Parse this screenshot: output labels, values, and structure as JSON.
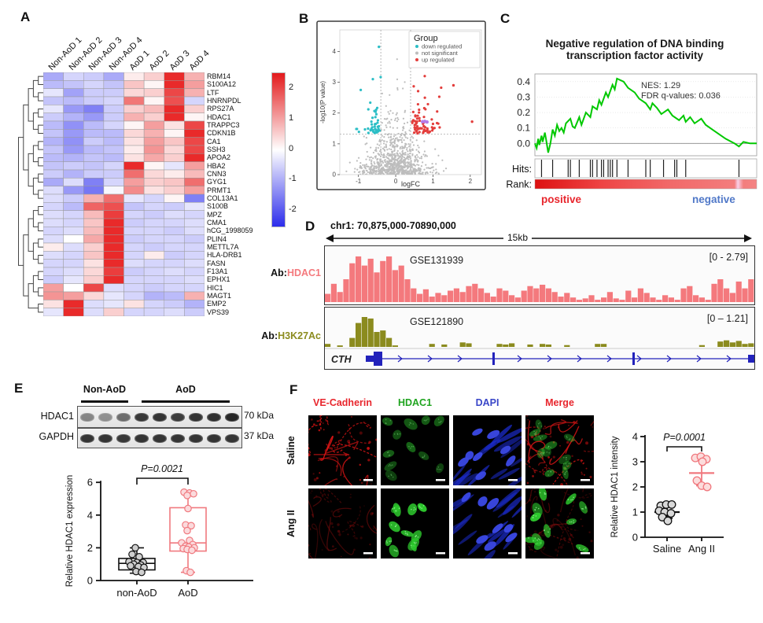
{
  "figure": {
    "panel_labels": {
      "A": "A",
      "B": "B",
      "C": "C",
      "D": "D",
      "E": "E",
      "F": "F"
    }
  },
  "panelA": {
    "columns": [
      "Non-AoD 1",
      "Non-AoD 2",
      "Non-AoD 3",
      "Non-AoD 4",
      "AoD 1",
      "AoD 2",
      "AoD 3",
      "AoD 4"
    ],
    "genes": [
      "RBM14",
      "S100A12",
      "LTF",
      "HNRNPDL",
      "RPS27A",
      "HDAC1",
      "TRAPPC3",
      "CDKN1B",
      "CA1",
      "SSH3",
      "APOA2",
      "HBA2",
      "CNN3",
      "GYG1",
      "PRMT1",
      "COL13A1",
      "S100B",
      "MPZ",
      "CMA1",
      "hCG_1998059",
      "PLIN4",
      "METTL7A",
      "HLA-DRB1",
      "FASN",
      "F13A1",
      "EPHX1",
      "HIC1",
      "MAGT1",
      "EMP2",
      "VPS39"
    ],
    "colorbar_ticks": [
      "2",
      "1",
      "0",
      "-1",
      "-2"
    ]
  },
  "panelB": {
    "legend_title": "Group",
    "legend": [
      {
        "label": "down regulated",
        "color": "#2cbec6"
      },
      {
        "label": "not significant",
        "color": "#bdbdbd"
      },
      {
        "label": "up regulated",
        "color": "#e33e3c"
      }
    ],
    "xlabel": "logFC",
    "ylabel": "-log10(P value)",
    "xticks": [
      "-1",
      "0",
      "1",
      "2"
    ],
    "yticks": [
      "0",
      "1",
      "2",
      "3",
      "4"
    ]
  },
  "panelC": {
    "title_line1": "Negative regulation of DNA binding",
    "title_line2": "transcription factor activity",
    "nes": "NES: 1.29",
    "fdr": "FDR q-values: 0.036",
    "yticks": [
      "0.4",
      "0.3",
      "0.2",
      "0.1",
      "0.0"
    ],
    "hits_label": "Hits:",
    "rank_label": "Rank:",
    "positive_label": "positive",
    "negative_label": "negative",
    "positive_color": "#e8262d",
    "negative_color": "#5078c8"
  },
  "panelD": {
    "locus": "chr1: 70,875,000-70890,000",
    "scale": "15kb",
    "track1": {
      "ab_prefix": "Ab:",
      "ab": "HDAC1",
      "ab_color": "#f4797d",
      "gse": "GSE131939",
      "range": "[0 - 2.79]"
    },
    "track2": {
      "ab_prefix": "Ab:",
      "ab": "H3K27Ac",
      "ab_color": "#8b8b1e",
      "gse": "GSE121890",
      "range": "[0 – 1.21]"
    },
    "gene": "CTH"
  },
  "panelE": {
    "group1": "Non-AoD",
    "group2": "AoD",
    "lanes": {
      "non_aod": 3,
      "aod": 6
    },
    "blot_rows": [
      {
        "label": "HDAC1",
        "mw": "70 kDa",
        "band_intensities": [
          0.5,
          0.45,
          0.62,
          0.88,
          0.9,
          0.86,
          0.9,
          0.92,
          0.97
        ]
      },
      {
        "label": "GAPDH",
        "mw": "37 kDa",
        "band_intensities": [
          0.9,
          0.9,
          0.88,
          0.9,
          0.9,
          0.9,
          0.9,
          0.9,
          0.9
        ]
      }
    ],
    "pvalue": "P=0.0021",
    "ylabel": "Relative HDAC1 expression",
    "yticks": [
      "0",
      "2",
      "4",
      "6"
    ],
    "xcats": [
      "non-AoD",
      "AoD"
    ]
  },
  "panelF": {
    "col_headers": [
      {
        "label": "VE-Cadherin",
        "color": "#e8262d"
      },
      {
        "label": "HDAC1",
        "color": "#1fa41f"
      },
      {
        "label": "DAPI",
        "color": "#3946c8"
      },
      {
        "label": "Merge",
        "color": "#e8262d"
      }
    ],
    "row_labels": [
      "Saline",
      "Ang II"
    ],
    "pvalue": "P=0.0001",
    "ylabel": "Relative HDAC1 intensity",
    "yticks": [
      "0",
      "1",
      "2",
      "3",
      "4"
    ],
    "xcats": [
      "Saline",
      "Ang II"
    ]
  },
  "chart_data": [
    {
      "id": "heatmap",
      "type": "heatmap",
      "categories": [
        "Non-AoD 1",
        "Non-AoD 2",
        "Non-AoD 3",
        "Non-AoD 4",
        "AoD 1",
        "AoD 2",
        "AoD 3",
        "AoD 4"
      ],
      "rows": [
        "RBM14",
        "S100A12",
        "LTF",
        "HNRNPDL",
        "RPS27A",
        "HDAC1",
        "TRAPPC3",
        "CDKN1B",
        "CA1",
        "SSH3",
        "APOA2",
        "HBA2",
        "CNN3",
        "GYG1",
        "PRMT1",
        "COL13A1",
        "S100B",
        "MPZ",
        "CMA1",
        "hCG_1998059",
        "PLIN4",
        "METTL7A",
        "HLA-DRB1",
        "FASN",
        "F13A1",
        "EPHX1",
        "HIC1",
        "MAGT1",
        "EMP2",
        "VPS39"
      ],
      "values": [
        [
          -1.0,
          -0.5,
          -0.6,
          -1.0,
          0.2,
          0.5,
          2.2,
          0.8
        ],
        [
          -0.8,
          -0.7,
          -0.5,
          -0.7,
          0.6,
          0.1,
          2.2,
          1.0
        ],
        [
          -0.3,
          -1.1,
          -0.6,
          -0.6,
          0.4,
          0.5,
          1.9,
          0.8
        ],
        [
          -0.7,
          -0.8,
          -0.6,
          -0.5,
          1.4,
          0.1,
          1.8,
          -0.5
        ],
        [
          -0.3,
          -1.2,
          -1.5,
          -0.6,
          0.5,
          0.7,
          2.2,
          0.5
        ],
        [
          -0.6,
          -0.9,
          -1.2,
          -0.6,
          0.8,
          0.5,
          2.2,
          0.1
        ],
        [
          -0.8,
          -1.3,
          -0.8,
          -0.5,
          0.1,
          1.0,
          0.3,
          1.9
        ],
        [
          -0.7,
          -1.2,
          -0.8,
          -0.8,
          0.4,
          0.8,
          0.1,
          2.2
        ],
        [
          -0.9,
          -1.3,
          -0.6,
          -0.8,
          0.3,
          1.0,
          0.6,
          1.9
        ],
        [
          -0.7,
          -1.2,
          -0.8,
          -0.7,
          0.2,
          1.1,
          0.4,
          1.9
        ],
        [
          -0.8,
          -0.9,
          -0.7,
          -0.8,
          0.3,
          0.9,
          0.5,
          2.2
        ],
        [
          -0.7,
          -0.6,
          -0.7,
          -0.5,
          2.2,
          0.1,
          -0.3,
          1.0
        ],
        [
          -0.6,
          -0.9,
          -0.6,
          -0.6,
          1.5,
          0.4,
          0.2,
          0.7
        ],
        [
          -1.0,
          -0.4,
          -1.5,
          -0.5,
          1.0,
          0.5,
          0.6,
          1.5
        ],
        [
          -0.4,
          -1.2,
          -1.6,
          -0.1,
          1.2,
          0.3,
          0.5,
          1.0
        ],
        [
          -0.4,
          -0.6,
          0.8,
          1.5,
          -0.3,
          -0.5,
          0.1,
          -1.5
        ],
        [
          -0.5,
          -0.8,
          1.6,
          1.8,
          -0.7,
          -0.5,
          -0.6,
          -0.3
        ],
        [
          -0.4,
          -0.5,
          0.7,
          2.0,
          -0.5,
          -0.6,
          -0.4,
          -0.5
        ],
        [
          -0.4,
          -0.5,
          0.6,
          2.2,
          -0.6,
          -0.5,
          -0.5,
          -0.4
        ],
        [
          -0.5,
          -0.4,
          0.7,
          2.2,
          -0.5,
          -0.5,
          -0.6,
          -0.4
        ],
        [
          -0.4,
          0.0,
          0.9,
          2.2,
          -0.6,
          -0.5,
          -0.5,
          -0.6
        ],
        [
          0.2,
          -0.4,
          0.5,
          2.2,
          -0.5,
          -0.6,
          -0.5,
          -0.5
        ],
        [
          -0.4,
          -0.5,
          0.6,
          2.2,
          -0.5,
          0.2,
          -0.6,
          -0.5
        ],
        [
          -0.5,
          -0.5,
          0.3,
          2.2,
          -0.4,
          -0.5,
          -0.5,
          -0.4
        ],
        [
          -0.5,
          -0.4,
          0.4,
          2.0,
          -0.6,
          -0.5,
          -0.4,
          -0.5
        ],
        [
          -0.6,
          -0.3,
          0.5,
          2.2,
          -0.5,
          -0.5,
          -0.5,
          -0.4
        ],
        [
          1.0,
          0.0,
          1.9,
          -0.4,
          -0.5,
          -0.6,
          -0.5,
          -0.5
        ],
        [
          1.1,
          1.0,
          0.4,
          -0.3,
          -0.5,
          -0.9,
          -0.8,
          0.8
        ],
        [
          0.3,
          2.2,
          -0.4,
          -0.3,
          0.3,
          -0.5,
          -0.6,
          -0.9
        ],
        [
          -0.3,
          2.2,
          -0.4,
          0.5,
          -0.5,
          -0.5,
          -0.4,
          -0.6
        ]
      ],
      "colorscale": {
        "min": -2,
        "max": 2,
        "neg": "#3c3cf0",
        "mid": "#ffffff",
        "pos": "#e82020"
      }
    },
    {
      "id": "volcano",
      "type": "scatter",
      "xlabel": "logFC",
      "ylabel": "-log10(P value)",
      "xlim": [
        -1.5,
        2.3
      ],
      "ylim": [
        0,
        4.7
      ],
      "thresholds": {
        "logfc": 0.4,
        "pvalue": 1.32
      },
      "seed": 7,
      "n_gray": 900,
      "n_down": 38,
      "n_up": 72,
      "extremes": [
        {
          "x": -0.45,
          "y": 4.15,
          "group": "down"
        },
        {
          "x": 2.05,
          "y": 1.72,
          "group": "up"
        },
        {
          "x": 1.55,
          "y": 2.9,
          "group": "up"
        }
      ],
      "highlight": {
        "points": [
          [
            0.72,
            1.72
          ],
          [
            0.78,
            1.73
          ],
          [
            0.84,
            1.71
          ]
        ],
        "color": "#b57ce8"
      }
    },
    {
      "id": "gsea",
      "type": "line",
      "ylim": [
        -0.08,
        0.45
      ],
      "nes": 1.29,
      "fdr_q": 0.036,
      "x": [
        0,
        0.8,
        1.5,
        2,
        3,
        3.5,
        4.5,
        5,
        6,
        7,
        8,
        9,
        10,
        11,
        12,
        13,
        14,
        16,
        17,
        18,
        20,
        21,
        23,
        25,
        26,
        28,
        29,
        30,
        32,
        33,
        35,
        36,
        37,
        40,
        42,
        45,
        47,
        50,
        52,
        53,
        55,
        57,
        60,
        62,
        65,
        67,
        68,
        70,
        72,
        75,
        77,
        80,
        83,
        86,
        90,
        92,
        94,
        97,
        100
      ],
      "y": [
        0,
        -0.03,
        0.03,
        -0.01,
        0.05,
        0.01,
        0.07,
        0.03,
        -0.06,
        0,
        0.09,
        0.05,
        0.12,
        0.08,
        0.1,
        0.07,
        0.13,
        0.16,
        0.11,
        0.1,
        0.17,
        0.12,
        0.2,
        0.17,
        0.24,
        0.22,
        0.28,
        0.25,
        0.33,
        0.3,
        0.38,
        0.35,
        0.42,
        0.4,
        0.36,
        0.33,
        0.29,
        0.26,
        0.22,
        0.26,
        0.23,
        0.19,
        0.22,
        0.18,
        0.15,
        0.18,
        0.14,
        0.17,
        0.13,
        0.16,
        0.12,
        0.09,
        0.06,
        0.03,
        0,
        -0.02,
        0.01,
        0,
        0
      ],
      "hits": [
        3,
        8,
        15,
        16,
        20,
        25,
        26,
        28,
        30,
        31,
        33,
        34,
        35,
        37,
        42,
        50,
        52,
        58,
        63,
        64,
        68,
        92
      ],
      "line_color": "#00c800",
      "rank_gradient": [
        [
          0,
          "#dd1111"
        ],
        [
          0.3,
          "#ee4444"
        ],
        [
          0.6,
          "#f16868"
        ],
        [
          0.9,
          "#f37d7d"
        ],
        [
          0.915,
          "#f9d0e8"
        ],
        [
          0.94,
          "#f37d7d"
        ],
        [
          1,
          "#f48484"
        ]
      ]
    },
    {
      "id": "hdac1_track",
      "type": "area",
      "range": [
        0,
        2.79
      ],
      "color": "#f4797d",
      "values": [
        0.18,
        0.4,
        0.22,
        0.5,
        0.85,
        1.0,
        0.8,
        0.95,
        0.65,
        0.9,
        1.0,
        0.7,
        0.8,
        0.5,
        0.3,
        0.18,
        0.28,
        0.12,
        0.2,
        0.15,
        0.25,
        0.3,
        0.22,
        0.35,
        0.4,
        0.3,
        0.2,
        0.12,
        0.3,
        0.25,
        0.15,
        0.1,
        0.25,
        0.35,
        0.3,
        0.38,
        0.3,
        0.22,
        0.12,
        0.2,
        0.1,
        0.05,
        0.08,
        0.15,
        0.05,
        0.1,
        0.22,
        0.08,
        0.05,
        0.25,
        0.1,
        0.3,
        0.2,
        0.1,
        0.05,
        0.15,
        0.1,
        0.05,
        0.3,
        0.35,
        0.15,
        0.1,
        0.05,
        0.4,
        0.5,
        0.3,
        0.2,
        0.45,
        0.3,
        0.5
      ]
    },
    {
      "id": "h3k27ac_track",
      "type": "area",
      "range": [
        0,
        1.21
      ],
      "color": "#8b8b1e",
      "values": [
        0.1,
        0,
        0.05,
        0,
        0.3,
        0.8,
        1.0,
        0.95,
        0.5,
        0.55,
        0.3,
        0.05,
        0,
        0,
        0,
        0,
        0,
        0.1,
        0,
        0.08,
        0,
        0,
        0.15,
        0.12,
        0,
        0,
        0,
        0,
        0.1,
        0.08,
        0.12,
        0,
        0,
        0.08,
        0,
        0.1,
        0.08,
        0,
        0,
        0.06,
        0,
        0,
        0,
        0,
        0.1,
        0.1,
        0,
        0,
        0,
        0,
        0,
        0,
        0,
        0,
        0,
        0,
        0,
        0,
        0,
        0,
        0,
        0.06,
        0,
        0,
        0.18,
        0.22,
        0.15,
        0.2,
        0.1,
        0.12
      ]
    },
    {
      "id": "hdac1_expression",
      "type": "box",
      "categories": [
        "non-AoD",
        "AoD"
      ],
      "ylim": [
        0,
        6
      ],
      "pvalue": "P=0.0021",
      "series": [
        {
          "name": "non-AoD",
          "color": "#111111",
          "dot_fill": "#cfcfcf",
          "box": {
            "q1": 0.65,
            "median": 1.05,
            "q3": 1.35,
            "lo": 0.45,
            "hi": 2.0
          },
          "points": [
            [
              -2,
              2.0
            ],
            [
              -6,
              1.6
            ],
            [
              3,
              1.45
            ],
            [
              -10,
              1.15
            ],
            [
              0,
              1.1
            ],
            [
              8,
              1.1
            ],
            [
              -4,
              1.0
            ],
            [
              5,
              0.95
            ],
            [
              -8,
              0.9
            ],
            [
              2,
              0.85
            ],
            [
              9,
              0.8
            ],
            [
              -1,
              0.55
            ],
            [
              6,
              0.5
            ]
          ]
        },
        {
          "name": "AoD",
          "color": "#f0797f",
          "dot_fill": "#fbdadc",
          "box": {
            "q1": 1.8,
            "median": 2.3,
            "q3": 4.45,
            "lo": 0.5,
            "hi": 5.4
          },
          "points": [
            [
              -5,
              5.4
            ],
            [
              2,
              5.35
            ],
            [
              7,
              5.3
            ],
            [
              -1,
              5.2
            ],
            [
              0,
              4.4
            ],
            [
              -3,
              3.4
            ],
            [
              4,
              3.35
            ],
            [
              -1,
              3.05
            ],
            [
              2,
              2.45
            ],
            [
              -8,
              2.3
            ],
            [
              6,
              2.2
            ],
            [
              -3,
              2.1
            ],
            [
              1,
              2.05
            ],
            [
              8,
              2.0
            ],
            [
              -6,
              1.95
            ],
            [
              -1,
              1.9
            ],
            [
              5,
              1.85
            ],
            [
              -2,
              0.6
            ],
            [
              3,
              0.5
            ]
          ]
        }
      ]
    },
    {
      "id": "hdac1_intensity",
      "type": "scatter",
      "categories": [
        "Saline",
        "Ang II"
      ],
      "ylim": [
        0,
        4
      ],
      "pvalue": "P=0.0001",
      "series": [
        {
          "name": "Saline",
          "color": "#111111",
          "dot_fill": "#d9d9d9",
          "mean": 1.0,
          "sd": 0.25,
          "points": [
            [
              -8,
              1.25
            ],
            [
              -1,
              1.3
            ],
            [
              6,
              1.3
            ],
            [
              -10,
              1.05
            ],
            [
              -3,
              1.0
            ],
            [
              5,
              0.95
            ],
            [
              -6,
              0.8
            ],
            [
              1,
              0.65
            ]
          ]
        },
        {
          "name": "Ang II",
          "color": "#f0797f",
          "dot_fill": "#fcdcdc",
          "mean": 2.55,
          "sd": 0.5,
          "points": [
            [
              -8,
              3.15
            ],
            [
              -1,
              3.2
            ],
            [
              6,
              3.1
            ],
            [
              1,
              3.0
            ],
            [
              -6,
              2.25
            ],
            [
              0,
              2.05
            ],
            [
              7,
              2.0
            ]
          ]
        }
      ]
    }
  ]
}
